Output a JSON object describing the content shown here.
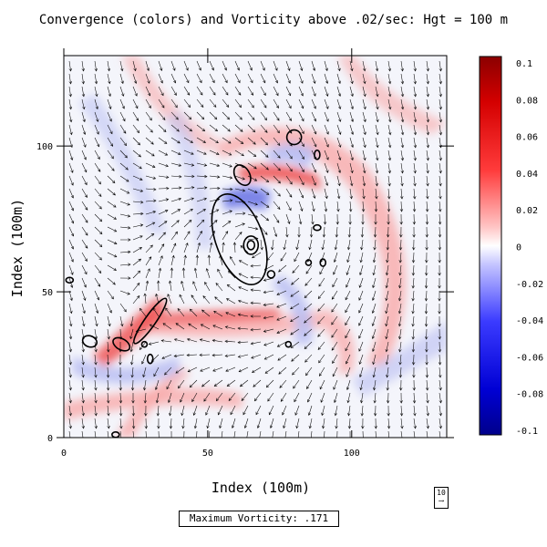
{
  "chart_data": {
    "type": "heatmap",
    "title": "Convergence (colors) and Vorticity above .02/sec: Hgt = 100 m",
    "xlabel": "Index (100m)",
    "ylabel": "Index (100m)",
    "xlim": [
      0,
      133
    ],
    "ylim": [
      0,
      131
    ],
    "xticks": [
      0,
      50,
      100
    ],
    "yticks": [
      0,
      50,
      100
    ],
    "colorbar": {
      "min": -0.1,
      "max": 0.1,
      "ticks": [
        "0.1",
        "0.08",
        "0.06",
        "0.04",
        "0.02",
        "0",
        "-0.02",
        "-0.04",
        "-0.06",
        "-0.08",
        "-0.1"
      ],
      "colors": {
        "positive": "#8b0000",
        "negative": "#00008b",
        "zero": "#ffffff"
      }
    },
    "vector_reference": {
      "label": "10"
    },
    "annotation": "Maximum Vorticity: .171",
    "vortex_center": {
      "x": 65,
      "y": 66
    }
  }
}
